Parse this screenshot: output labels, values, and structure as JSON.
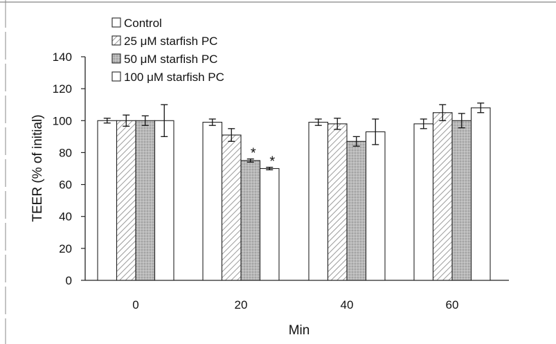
{
  "chart_data": {
    "type": "bar",
    "title": "",
    "xlabel": "Min",
    "ylabel": "TEER (% of initial)",
    "categories": [
      "0",
      "20",
      "40",
      "60"
    ],
    "ylim": [
      0,
      140
    ],
    "yticks": [
      "0",
      "20",
      "40",
      "60",
      "80",
      "100",
      "120",
      "140"
    ],
    "grid": false,
    "legend_position": "top-left",
    "series": [
      {
        "name": "Control",
        "values": [
          100,
          99,
          99,
          98
        ],
        "errors": [
          1.5,
          2,
          2,
          3
        ],
        "fill": "plain",
        "color": "#ffffff"
      },
      {
        "name": "25 μM starfish PC",
        "values": [
          100,
          91,
          98,
          105
        ],
        "errors": [
          3.5,
          4,
          3.5,
          5
        ],
        "fill": "hatch",
        "color": "#d9d9d9"
      },
      {
        "name": "50 μM starfish PC",
        "values": [
          100,
          75,
          87,
          100
        ],
        "errors": [
          3,
          1,
          3,
          4.5
        ],
        "fill": "dots",
        "color": "#bdbdbd"
      },
      {
        "name": "100 μM starfish PC",
        "values": [
          100,
          70,
          93,
          108
        ],
        "errors": [
          10,
          0.8,
          8,
          3
        ],
        "fill": "plain",
        "color": "#ffffff"
      }
    ],
    "annotations": [
      {
        "text": "*",
        "category": "20",
        "series": "50 μM starfish PC"
      },
      {
        "text": "*",
        "category": "20",
        "series": "100 μM starfish PC"
      }
    ]
  }
}
